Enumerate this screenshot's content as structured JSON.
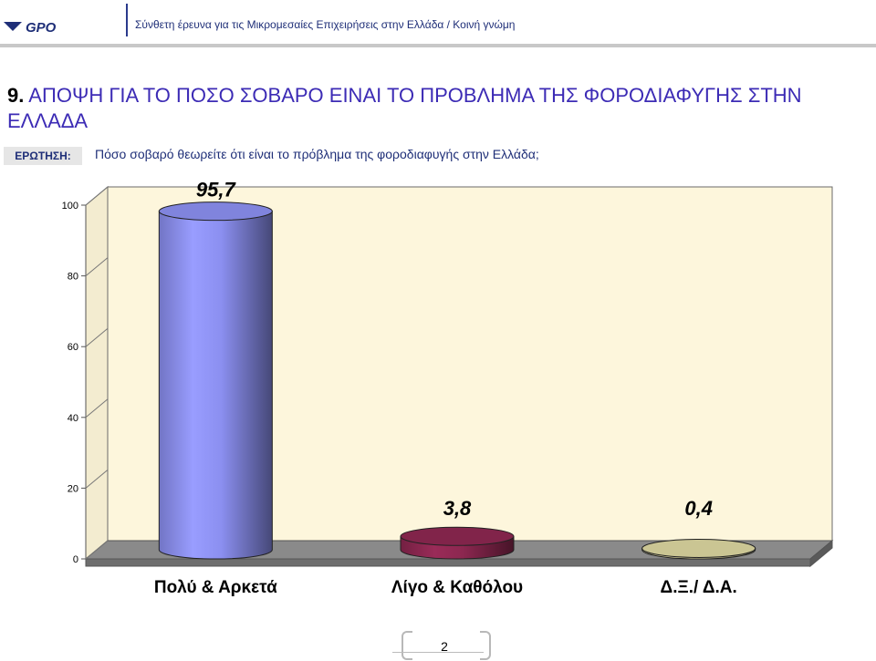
{
  "header": {
    "logo_text": "GPO",
    "subtitle": "Σύνθετη έρευνα για τις  Μικρομεσαίες Επιχειρήσεις στην Ελλάδα  /  Κοινή γνώμη"
  },
  "section": {
    "number": "9.",
    "title": "ΑΠΟΨΗ ΓΙΑ ΤΟ ΠΟΣΟ ΣΟΒΑΡΟ ΕΙΝΑΙ ΤΟ ΠΡΟΒΛΗΜΑ ΤΗΣ ΦΟΡΟΔΙΑΦΥΓΗΣ ΣΤΗΝ ΕΛΛΑΔΑ"
  },
  "question": {
    "label": "ΕΡΩΤΗΣΗ:",
    "text": "Πόσο σοβαρό θεωρείτε ότι είναι το πρόβλημα της φοροδιαφυγής στην Ελλάδα;"
  },
  "chart_data": {
    "type": "bar",
    "categories": [
      "Πολύ & Αρκετά",
      "Λίγο & Καθόλου",
      "Δ.Ξ./ Δ.Α."
    ],
    "values": [
      95.7,
      3.8,
      0.4
    ],
    "value_labels": [
      "95,7",
      "3,8",
      "0,4"
    ],
    "y_ticks": [
      0,
      20,
      40,
      60,
      80,
      100
    ],
    "ylim": [
      0,
      100
    ],
    "grid": false,
    "colors": [
      "#8b8ff0",
      "#8c2750",
      "#dcd6a0"
    ],
    "plot_bg": "#fdf6dc"
  },
  "footer": {
    "page_number": "2"
  }
}
